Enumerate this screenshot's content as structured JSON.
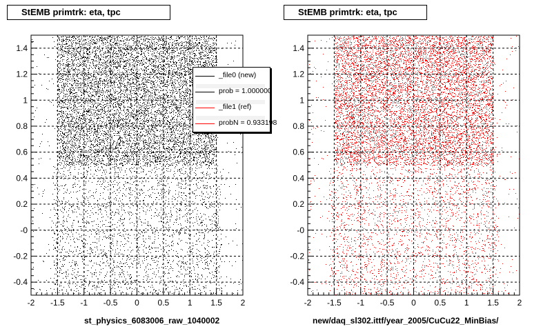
{
  "panels": [
    {
      "title": "StEMB primtrk: eta, tpc",
      "xlabel": "st_physics_6083006_raw_1040002",
      "color": "#000000"
    },
    {
      "title": "StEMB primtrk: eta, tpc",
      "xlabel": "new/daq_sl302.ittf/year_2005/CuCu22_MinBias/",
      "color": "#ff0000"
    }
  ],
  "legend": {
    "entries": [
      {
        "label": "_file0 (new)",
        "color": "#000000"
      },
      {
        "label": "prob = 1.000000",
        "color": "#000000"
      },
      {
        "label": "_file1 (ref)",
        "color": "#ff0000"
      },
      {
        "label": "probN = 0.933198",
        "color": "#ff0000"
      }
    ]
  },
  "chart_data": [
    {
      "type": "scatter",
      "title": "StEMB primtrk: eta, tpc",
      "xlabel": "st_physics_6083006_raw_1040002",
      "ylabel": "",
      "xlim": [
        -2,
        2
      ],
      "ylim": [
        -0.5,
        1.5
      ],
      "x_ticks": [
        "-2",
        "-1.5",
        "-1",
        "-0.5",
        "0",
        "0.5",
        "1",
        "1.5",
        "2"
      ],
      "y_ticks": [
        "-0.4",
        "-0.2",
        "-0",
        "0.2",
        "0.4",
        "0.6",
        "0.8",
        "1",
        "1.2",
        "1.4"
      ],
      "grid": true,
      "marker_color": "#000000",
      "density_regions": [
        {
          "x_range": [
            -1.5,
            1.5
          ],
          "y_range": [
            0.5,
            1.5
          ],
          "density": "high"
        },
        {
          "x_range": [
            -1.6,
            1.6
          ],
          "y_range": [
            -0.5,
            0.5
          ],
          "density": "medium"
        },
        {
          "x_range": [
            -2.0,
            2.0
          ],
          "y_range": [
            -0.5,
            1.5
          ],
          "density": "low"
        }
      ]
    },
    {
      "type": "scatter",
      "title": "StEMB primtrk: eta, tpc",
      "xlabel": "new/daq_sl302.ittf/year_2005/CuCu22_MinBias/",
      "ylabel": "",
      "xlim": [
        -2,
        2
      ],
      "ylim": [
        -0.5,
        1.5
      ],
      "x_ticks": [
        "-2",
        "-1.5",
        "-1",
        "-0.5",
        "0",
        "0.5",
        "1",
        "1.5",
        "2"
      ],
      "y_ticks": [
        "-0.4",
        "-0.2",
        "-0",
        "0.2",
        "0.4",
        "0.6",
        "0.8",
        "1",
        "1.2",
        "1.4"
      ],
      "grid": true,
      "marker_color": "#ff0000",
      "density_regions": [
        {
          "x_range": [
            -1.5,
            1.5
          ],
          "y_range": [
            0.5,
            1.5
          ],
          "density": "high"
        },
        {
          "x_range": [
            -1.6,
            1.6
          ],
          "y_range": [
            -0.5,
            0.5
          ],
          "density": "medium"
        },
        {
          "x_range": [
            -2.0,
            2.0
          ],
          "y_range": [
            -0.5,
            1.5
          ],
          "density": "low"
        }
      ]
    }
  ]
}
